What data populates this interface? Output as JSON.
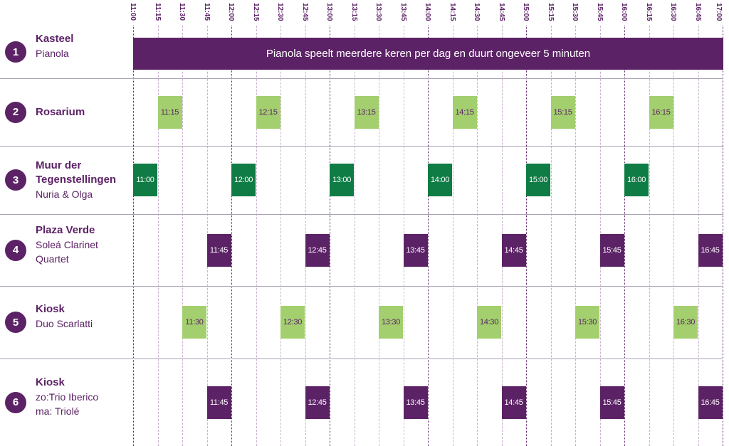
{
  "time_labels": [
    "11:00",
    "11:15",
    "11:30",
    "11:45",
    "12:00",
    "12:15",
    "12:30",
    "12:45",
    "13:00",
    "13:15",
    "13:30",
    "13:45",
    "14:00",
    "14:15",
    "14:30",
    "14:45",
    "15:00",
    "15:15",
    "15:30",
    "15:45",
    "16:00",
    "16:15",
    "16:30",
    "16:45",
    "17:00"
  ],
  "rows": [
    {
      "number": "1",
      "title": "Kasteel",
      "subtitle": "Pianola",
      "banner": "Pianola speelt meerdere keren per dag en duurt ongeveer 5 minuten",
      "color": "purple",
      "slots": []
    },
    {
      "number": "2",
      "title": "Rosarium",
      "subtitle": "",
      "color": "light",
      "slots": [
        "11:15",
        "12:15",
        "13:15",
        "14:15",
        "15:15",
        "16:15"
      ]
    },
    {
      "number": "3",
      "title": "Muur der Tegenstellingen",
      "subtitle": "Nuria & Olga",
      "color": "green",
      "slots": [
        "11:00",
        "12:00",
        "13:00",
        "14:00",
        "15:00",
        "16:00"
      ]
    },
    {
      "number": "4",
      "title": "Plaza Verde",
      "subtitle": "Soleá Clarinet Quartet",
      "color": "purple",
      "slots": [
        "11:45",
        "12:45",
        "13:45",
        "14:45",
        "15:45",
        "16:45"
      ]
    },
    {
      "number": "5",
      "title": "Kiosk",
      "subtitle": "Duo Scarlatti",
      "color": "light",
      "slots": [
        "11:30",
        "12:30",
        "13:30",
        "14:30",
        "15:30",
        "16:30"
      ]
    },
    {
      "number": "6",
      "title": "Kiosk",
      "subtitle": "zo:Trio Iberico\nma: Triolé",
      "color": "purple",
      "slots": [
        "11:45",
        "12:45",
        "13:45",
        "14:45",
        "15:45",
        "16:45"
      ]
    }
  ],
  "colors": {
    "purple": "#5c2266",
    "green": "#0e7c44",
    "light_green": "#a3cf6e",
    "grid": "#a8a3b8"
  }
}
